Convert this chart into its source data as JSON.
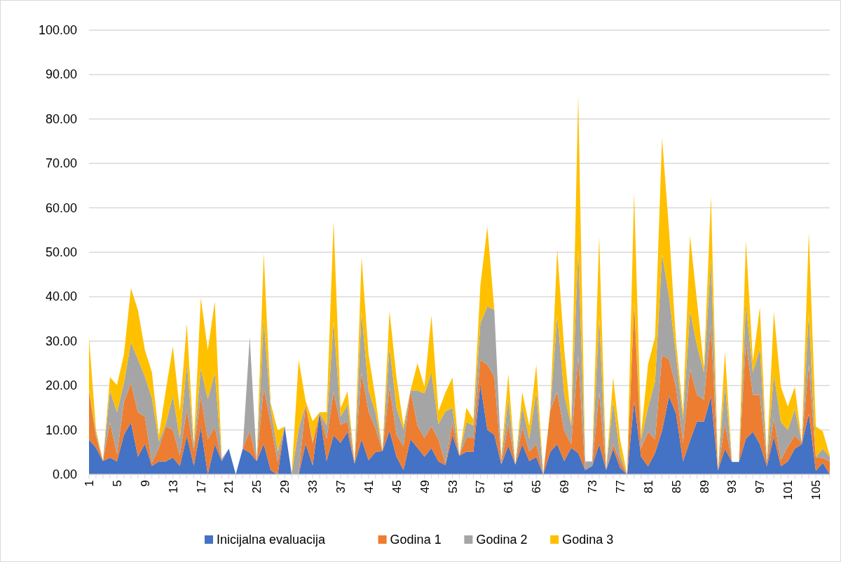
{
  "chart_data": {
    "type": "area",
    "stacked": true,
    "grid": "y",
    "legend": "bottom",
    "categories": [
      "1",
      null,
      null,
      null,
      "5",
      null,
      null,
      null,
      "9",
      null,
      null,
      null,
      "13",
      null,
      null,
      null,
      "17",
      null,
      null,
      null,
      "21",
      null,
      null,
      null,
      "25",
      null,
      null,
      null,
      "29",
      null,
      null,
      null,
      "33",
      null,
      null,
      null,
      "37",
      null,
      null,
      null,
      "41",
      null,
      null,
      null,
      "45",
      null,
      null,
      null,
      "49",
      null,
      null,
      null,
      "53",
      null,
      null,
      null,
      "57",
      null,
      null,
      null,
      "61",
      null,
      null,
      null,
      "65",
      null,
      null,
      null,
      "69",
      null,
      null,
      null,
      "73",
      null,
      null,
      null,
      "77",
      null,
      null,
      null,
      "81",
      null,
      null,
      null,
      "85",
      null,
      null,
      null,
      "89",
      null,
      null,
      null,
      "93",
      null,
      null,
      null,
      "97",
      null,
      null,
      null,
      "101",
      null,
      null,
      null,
      "105",
      null,
      null
    ],
    "ylim": [
      0,
      100
    ],
    "yticks": [
      {
        "value": 0,
        "label": "0.00"
      },
      {
        "value": 10,
        "label": "10.00"
      },
      {
        "value": 20,
        "label": "20.00"
      },
      {
        "value": 30,
        "label": "30.00"
      },
      {
        "value": 40,
        "label": "40.00"
      },
      {
        "value": 50,
        "label": "50.00"
      },
      {
        "value": 60,
        "label": "60.00"
      },
      {
        "value": 70,
        "label": "70.00"
      },
      {
        "value": 80,
        "label": "80.00"
      },
      {
        "value": 90,
        "label": "90.00"
      },
      {
        "value": 100,
        "label": "100.00"
      }
    ],
    "series": [
      {
        "name": "Inicijalna evaluacija",
        "color": "#4472c4",
        "values": [
          7.8,
          6,
          3,
          3.8,
          2.9,
          8.9,
          11.7,
          4,
          6.9,
          1.9,
          2.9,
          2.9,
          3.8,
          1.9,
          8.7,
          1.9,
          10.6,
          0,
          6.8,
          3,
          5.8,
          0,
          5.8,
          4.9,
          3,
          6.9,
          0.9,
          0,
          10.8,
          0,
          0,
          6.9,
          2,
          13.9,
          3,
          8.8,
          7.1,
          9.6,
          2.4,
          7.9,
          3.2,
          5,
          5.3,
          9.8,
          4,
          1,
          7.9,
          6,
          4,
          5.9,
          2.9,
          2.1,
          8.8,
          4.2,
          5.1,
          5.1,
          20.3,
          10,
          8.9,
          2.2,
          6.5,
          2.2,
          6.8,
          3,
          3.9,
          0,
          5.1,
          6.8,
          3,
          6,
          4.8,
          1,
          1.9,
          6.8,
          1,
          5.7,
          1.5,
          0,
          16.5,
          4,
          1.8,
          4.8,
          9.8,
          17.6,
          13.7,
          2.9,
          7.6,
          11.9,
          11.9,
          17.6,
          0.9,
          5.7,
          2.8,
          2.8,
          8,
          9.6,
          6.8,
          1.8,
          8.5,
          1.8,
          2.9,
          5.8,
          6.8,
          13.7,
          0.8,
          2.6,
          0
        ]
      },
      {
        "name": "Godina 1",
        "color": "#ed7d31",
        "values": [
          11,
          2.5,
          0,
          7.9,
          1.6,
          7.4,
          8.9,
          10,
          6.1,
          0.7,
          3.1,
          7.9,
          6.2,
          2.3,
          6.1,
          3.4,
          7.1,
          7.9,
          3.9,
          0,
          0,
          0,
          0,
          4.8,
          0,
          12.7,
          10.6,
          2.8,
          0,
          0,
          0,
          8.8,
          5,
          0,
          5,
          9.8,
          4.1,
          2.3,
          0.2,
          15,
          11,
          5.3,
          0,
          9.9,
          4.9,
          5.3,
          11,
          5,
          4.2,
          4.9,
          5,
          0.3,
          2.8,
          0,
          3.1,
          3.1,
          5.5,
          14.7,
          13.1,
          0.3,
          5,
          0,
          3.8,
          2.1,
          2.9,
          0,
          9.3,
          11.7,
          6.8,
          0.8,
          21.9,
          0,
          0,
          11.7,
          0,
          1.1,
          1.4,
          0,
          21.9,
          1.9,
          7.8,
          3.1,
          17,
          8.3,
          5.9,
          4.2,
          16.1,
          6,
          4.9,
          16.1,
          0,
          5.8,
          0,
          0,
          21.8,
          8.3,
          11.1,
          0.7,
          4.1,
          1.4,
          3.4,
          2.9,
          0.3,
          11,
          3.1,
          1.1,
          2.9
        ]
      },
      {
        "name": "Godina 2",
        "color": "#a5a5a5",
        "values": [
          0.2,
          0.8,
          0,
          7.1,
          9.5,
          4.3,
          9.1,
          11.9,
          9,
          14.6,
          1.4,
          0.6,
          7.7,
          3.8,
          10.1,
          1,
          6.1,
          9,
          12.1,
          0.5,
          0,
          0,
          0,
          21.2,
          0,
          15.2,
          3.4,
          2.3,
          0,
          0,
          10.2,
          0,
          0.5,
          0,
          3,
          15.9,
          1.8,
          3.8,
          0,
          13.7,
          4.7,
          3.6,
          0,
          9,
          6.1,
          3.7,
          0,
          7.9,
          10,
          12.1,
          3.4,
          11.8,
          3.4,
          0,
          3.6,
          2.8,
          8.2,
          13.1,
          15,
          0.8,
          5.5,
          0,
          4.7,
          2.9,
          11.7,
          0,
          0,
          17.3,
          8.2,
          4.1,
          24,
          1.9,
          1,
          17,
          0,
          9.7,
          1.4,
          0,
          0.6,
          2,
          5.5,
          13,
          22.8,
          14.2,
          7.2,
          5.2,
          13.1,
          11.1,
          6.1,
          14.7,
          0,
          8.9,
          0,
          0,
          8.6,
          5,
          10.5,
          0.5,
          10,
          8.6,
          3.7,
          6,
          0,
          11.6,
          0,
          2.1,
          1
        ]
      },
      {
        "name": "Godina 3",
        "color": "#ffc000",
        "values": [
          11.8,
          0.7,
          0,
          3.1,
          6.1,
          6.4,
          12.2,
          11.1,
          6,
          5.8,
          1.3,
          7.6,
          11.1,
          6.3,
          9,
          0.8,
          15.9,
          11.1,
          16.1,
          0,
          0,
          0,
          0,
          0,
          0,
          15,
          1.1,
          4.8,
          0,
          0,
          15.6,
          0.8,
          4.5,
          0.1,
          3,
          22.5,
          1.9,
          3,
          0,
          12.3,
          8.1,
          3.2,
          0,
          8.1,
          6.8,
          1,
          0,
          6.1,
          1.5,
          12.9,
          2.9,
          4.2,
          6.8,
          0,
          3.2,
          1.4,
          8.5,
          17.9,
          0,
          0.6,
          5.6,
          0,
          3.2,
          2.9,
          6.2,
          0,
          0.6,
          14.9,
          10.2,
          0.6,
          34.8,
          0,
          0,
          18.1,
          0,
          5.3,
          3.6,
          0,
          24.4,
          1.1,
          9.7,
          10,
          26.1,
          14.9,
          3.2,
          1.7,
          16.9,
          10,
          1.1,
          14.2,
          0,
          7.2,
          0,
          0,
          14.2,
          2.6,
          9.2,
          0.2,
          14,
          7.9,
          5.3,
          5,
          0,
          18.2,
          6.9,
          3.9,
          0.3
        ]
      }
    ]
  }
}
